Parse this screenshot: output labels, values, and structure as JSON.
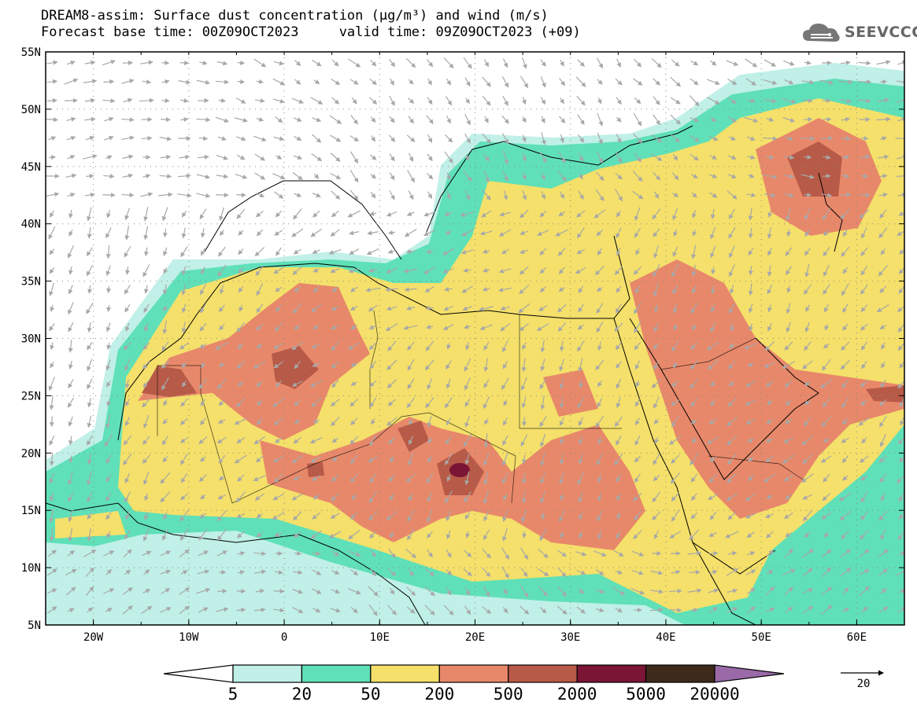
{
  "title": {
    "line1": "DREAM8-assim: Surface dust concentration (μg/m³) and wind (m/s)",
    "line2": "Forecast base time: 00Z09OCT2023     valid time: 09Z09OCT2023 (+09)"
  },
  "logo": {
    "text": "SEEVCCC",
    "icon": "cloud-icon"
  },
  "map": {
    "lon_range": [
      -25,
      65
    ],
    "lat_range": [
      5,
      55
    ],
    "lon_ticks": [
      "20W",
      "10W",
      "0",
      "10E",
      "20E",
      "30E",
      "40E",
      "50E",
      "60E"
    ],
    "lon_tick_values": [
      -20,
      -10,
      0,
      10,
      20,
      30,
      40,
      50,
      60
    ],
    "lat_ticks": [
      "5N",
      "10N",
      "15N",
      "20N",
      "25N",
      "30N",
      "35N",
      "40N",
      "45N",
      "50N",
      "55N"
    ],
    "lat_tick_values": [
      5,
      10,
      15,
      20,
      25,
      30,
      35,
      40,
      45,
      50,
      55
    ],
    "gridlines": true,
    "wind_vector_color": "#a8a8a8"
  },
  "colorbar": {
    "labels": [
      "5",
      "20",
      "50",
      "200",
      "500",
      "2000",
      "5000",
      "20000"
    ],
    "colors": [
      "#c0f0e8",
      "#5fe0b8",
      "#f4e06a",
      "#e8886a",
      "#b85a48",
      "#7a1535",
      "#3d2a1a",
      "#9a6aa8"
    ],
    "low_extend_color": "#ffffff"
  },
  "wind_reference": {
    "label": "20"
  }
}
